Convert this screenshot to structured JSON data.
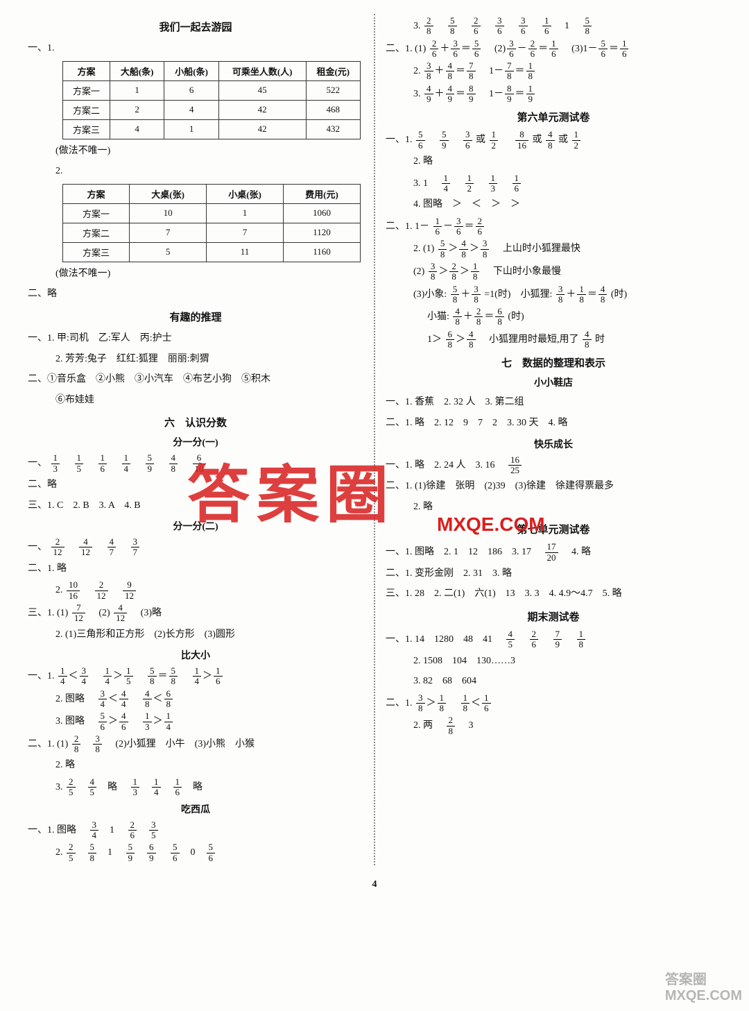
{
  "left": {
    "title1": "我们一起去游园",
    "q1_label": "一、1.",
    "table1": {
      "headers": [
        "方案",
        "大船(条)",
        "小船(条)",
        "可乘坐人数(人)",
        "租金(元)"
      ],
      "rows": [
        [
          "方案一",
          "1",
          "6",
          "45",
          "522"
        ],
        [
          "方案二",
          "2",
          "4",
          "42",
          "468"
        ],
        [
          "方案三",
          "4",
          "1",
          "42",
          "432"
        ]
      ]
    },
    "note1": "(做法不唯一)",
    "q2_label": "2.",
    "table2": {
      "headers": [
        "方案",
        "大桌(张)",
        "小桌(张)",
        "费用(元)"
      ],
      "rows": [
        [
          "方案一",
          "10",
          "1",
          "1060"
        ],
        [
          "方案二",
          "7",
          "7",
          "1120"
        ],
        [
          "方案三",
          "5",
          "11",
          "1160"
        ]
      ]
    },
    "note2": "(做法不唯一)",
    "er_lue": "二、略",
    "title2": "有趣的推理",
    "t2_1": "一、1. 甲:司机　乙:军人　丙:护士",
    "t2_2": "2. 芳芳:兔子　红红:狐狸　丽丽:刺猬",
    "t2_3": "二、①音乐盒　②小熊　③小汽车　④布艺小狗　⑤积木",
    "t2_4": "⑥布娃娃",
    "title3": "六　认识分数",
    "sub3_1": "分一分(一)",
    "f1_fracs": [
      [
        "1",
        "3"
      ],
      [
        "1",
        "5"
      ],
      [
        "1",
        "6"
      ],
      [
        "1",
        "4"
      ],
      [
        "5",
        "9"
      ],
      [
        "4",
        "8"
      ],
      [
        "6",
        "10"
      ]
    ],
    "f1_lue": "二、略",
    "f1_3": "三、1. C　2. B　3. A　4. B",
    "sub3_2": "分一分(二)",
    "f2_fracs": [
      [
        "2",
        "12"
      ],
      [
        "4",
        "12"
      ],
      [
        "4",
        "7"
      ],
      [
        "3",
        "7"
      ]
    ],
    "f2_2": "二、1. 略",
    "f2_2b_fracs": [
      [
        "10",
        "16"
      ],
      [
        "2",
        "12"
      ],
      [
        "9",
        "12"
      ]
    ],
    "f2_3a": "三、1. (1)",
    "f2_3a_f1": [
      "7",
      "12"
    ],
    "f2_3a_mid": "　(2)",
    "f2_3a_f2": [
      "4",
      "12"
    ],
    "f2_3a_end": "　(3)略",
    "f2_3b": "2. (1)三角形和正方形　(2)长方形　(3)圆形",
    "sub3_3": "比大小",
    "bdx_1": "一、1.",
    "bdx_2": "2. 图略　",
    "bdx_3": "3. 图略　",
    "bdx_4a": "二、1. (1)",
    "bdx_4b": "　(2)小狐狸　小牛　(3)小熊　小猴",
    "bdx_5": "2. 略",
    "bdx_6": "3.",
    "sub3_4": "吃西瓜",
    "cxg_1": "一、1. 图略　",
    "cxg_2": "2."
  },
  "right": {
    "r1": "3.",
    "r1_fracs": [
      [
        "2",
        "8"
      ],
      [
        "5",
        "8"
      ],
      [
        "2",
        "6"
      ],
      [
        "3",
        "6"
      ],
      [
        "3",
        "6"
      ],
      [
        "1",
        "6"
      ]
    ],
    "r1_end": "　1　",
    "r1_last": [
      "5",
      "8"
    ],
    "r2_pre": "二、1. (1)",
    "r3_pre": "2.",
    "r4_pre": "3.",
    "title_u6": "第六单元测试卷",
    "u6_1": "一、1.",
    "u6_1_fracs": [
      [
        "5",
        "6"
      ],
      [
        "5",
        "9"
      ],
      [
        "3",
        "6"
      ]
    ],
    "u6_1_mid1": "或",
    "u6_1_f1": [
      "1",
      "2"
    ],
    "u6_1_gap": "　",
    "u6_1_f2": [
      "8",
      "16"
    ],
    "u6_1_mid2": "或",
    "u6_1_f3": [
      "4",
      "8"
    ],
    "u6_1_mid3": "或",
    "u6_1_f4": [
      "1",
      "2"
    ],
    "u6_2": "2. 略",
    "u6_3": "3. 1　",
    "u6_3_fracs": [
      [
        "1",
        "4"
      ],
      [
        "1",
        "2"
      ],
      [
        "1",
        "3"
      ],
      [
        "1",
        "6"
      ]
    ],
    "u6_4": "4. 图略　＞　＜　＞　＞",
    "u6_5": "二、1. 1－",
    "u6_6": "2. (1)",
    "u6_6_end": "　上山时小狐狸最快",
    "u6_7": "(2)",
    "u6_7_end": "　下山时小象最慢",
    "u6_8a": "(3)小象:",
    "u6_8b": "=1(时)　小狐狸:",
    "u6_8c": "(时)",
    "u6_9a": "小猫:",
    "u6_9b": "(时)",
    "u6_10a": "1＞",
    "u6_10b": "　小狐狸用时最短,用了",
    "u6_10c": "时",
    "title_u7": "七　数据的整理和表示",
    "sub_xd": "小小鞋店",
    "xd_1": "一、1. 香蕉　2. 32 人　3. 第二组",
    "xd_2": "二、1. 略　2. 12　9　7　2　3. 30 天　4. 略",
    "sub_kl": "快乐成长",
    "kl_1": "一、1. 略　2. 24 人　3. 16　",
    "kl_1_f": [
      "16",
      "25"
    ],
    "kl_2": "二、1. (1)徐建　张明　(2)39　(3)徐建　徐建得票最多",
    "kl_3": "2. 略",
    "title_u7t": "第七单元测试卷",
    "u7_1": "一、1. 图略　2. 1　12　186　3. 17　",
    "u7_1_f": [
      "17",
      "20"
    ],
    "u7_1_end": "　4. 略",
    "u7_2": "二、1. 变形金刚　2. 31　3. 略",
    "u7_3": "三、1. 28　2. 二(1)　六(1)　13　3. 3　4. 4.9～4.7　5. 略",
    "title_qm": "期末测试卷",
    "qm_1": "一、1. 14　1280　48　41　",
    "qm_1_fracs": [
      [
        "4",
        "5"
      ],
      [
        "2",
        "6"
      ],
      [
        "7",
        "9"
      ],
      [
        "1",
        "8"
      ]
    ],
    "qm_2": "2. 1508　104　130……3",
    "qm_3": "3. 82　68　604",
    "qm_4": "二、1.",
    "qm_5": "2. 两　",
    "qm_5_f": [
      "2",
      "8"
    ],
    "qm_5_end": "　3"
  },
  "page_num": "4",
  "watermark_text": "答案圈",
  "watermark_url": "MXQE.COM"
}
